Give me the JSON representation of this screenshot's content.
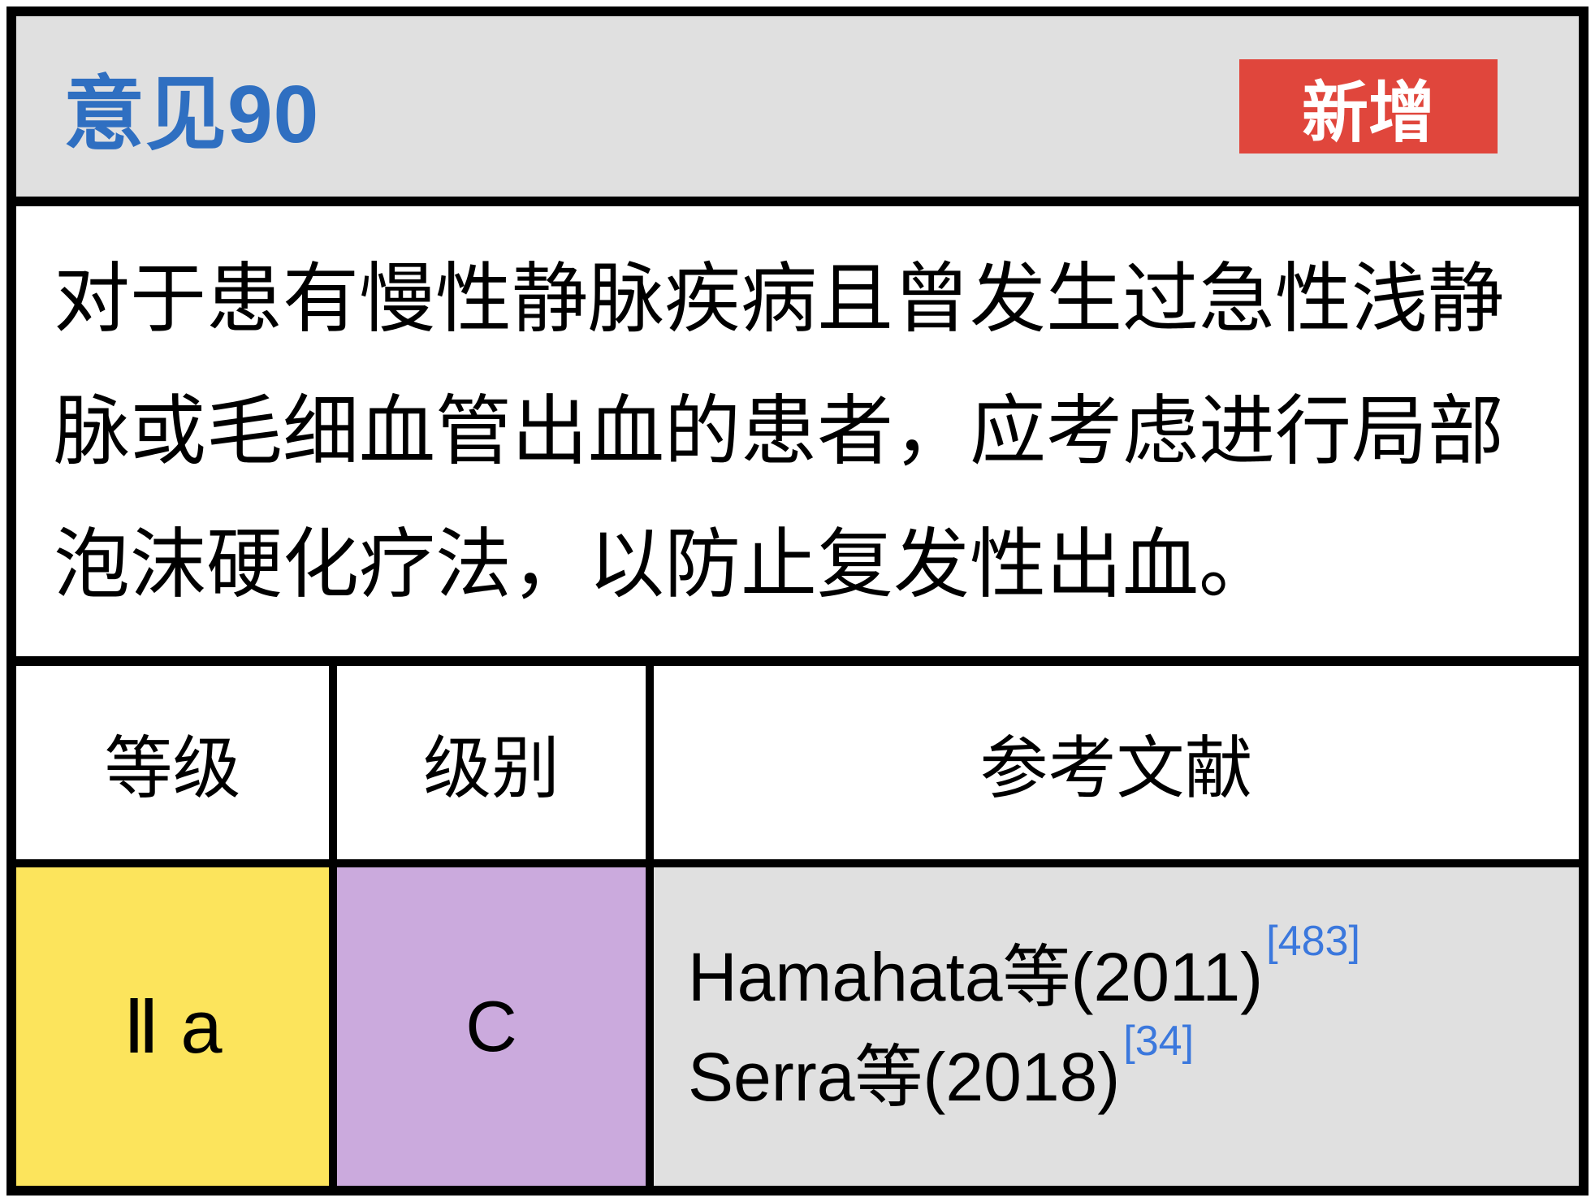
{
  "header": {
    "title": "意见90",
    "badge": "新增"
  },
  "body": {
    "text": "对于患有慢性静脉疾病且曾发生过急性浅静脉或毛细血管出血的患者，应考虑进行局部泡沫硬化疗法，以防止复发性出血。"
  },
  "table": {
    "columns": [
      "等级",
      "级别",
      "参考文献"
    ],
    "row": {
      "grade": "Ⅱ a",
      "level": "C",
      "references": [
        {
          "text": "Hamahata等(2011)",
          "citation": "[483]"
        },
        {
          "text": "Serra等(2018)",
          "citation": "[34]"
        }
      ]
    }
  },
  "colors": {
    "accent_blue": "#2f6fc1",
    "badge_red": "#e0463c",
    "grade_yellow": "#fce45c",
    "level_purple": "#cbaadd",
    "cell_gray": "#e0e0e0",
    "citation_blue": "#3b78dd"
  }
}
